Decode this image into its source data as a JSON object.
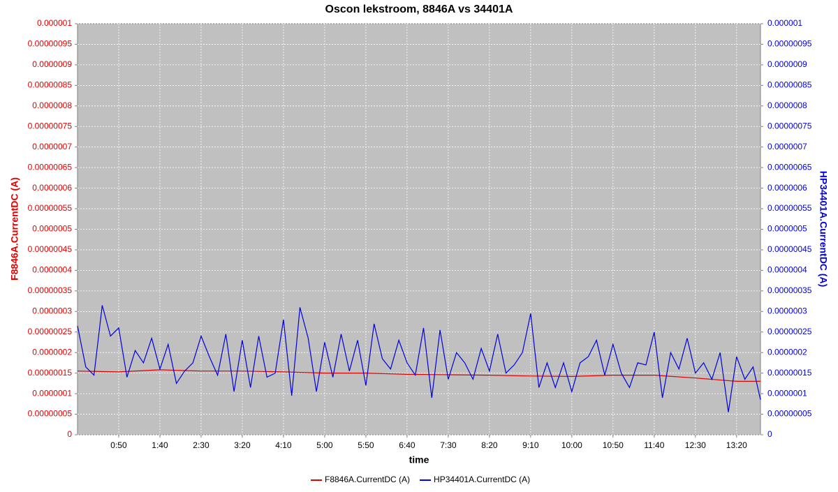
{
  "chart_data": {
    "type": "line",
    "title": "Oscon lekstroom, 8846A vs 34401A",
    "x_label": "time",
    "y_label": "F8846A.CurrentDC (A)",
    "y2_label": "HP34401A.CurrentDC (A)",
    "grid": true,
    "legend": "bottom",
    "xlim": [
      0,
      829
    ],
    "xticks": [
      {
        "value": 50,
        "label": "0:50"
      },
      {
        "value": 100,
        "label": "1:40"
      },
      {
        "value": 150,
        "label": "2:30"
      },
      {
        "value": 200,
        "label": "3:20"
      },
      {
        "value": 250,
        "label": "4:10"
      },
      {
        "value": 300,
        "label": "5:00"
      },
      {
        "value": 350,
        "label": "5:50"
      },
      {
        "value": 400,
        "label": "6:40"
      },
      {
        "value": 450,
        "label": "7:30"
      },
      {
        "value": 500,
        "label": "8:20"
      },
      {
        "value": 550,
        "label": "9:10"
      },
      {
        "value": 600,
        "label": "10:00"
      },
      {
        "value": 650,
        "label": "10:50"
      },
      {
        "value": 700,
        "label": "11:40"
      },
      {
        "value": 750,
        "label": "12:30"
      },
      {
        "value": 800,
        "label": "13:20"
      }
    ],
    "ylim": [
      0,
      1e-06
    ],
    "yticks": [
      0,
      {
        "value": 5e-08,
        "label": "0.00000005"
      },
      {
        "value": 1e-07,
        "label": "0.0000001"
      },
      {
        "value": 1.5e-07,
        "label": "0.00000015"
      },
      {
        "value": 2e-07,
        "label": "0.0000002"
      },
      {
        "value": 2.5e-07,
        "label": "0.00000025"
      },
      {
        "value": 3e-07,
        "label": "0.0000003"
      },
      {
        "value": 3.5e-07,
        "label": "0.00000035"
      },
      {
        "value": 4e-07,
        "label": "0.0000004"
      },
      {
        "value": 4.5e-07,
        "label": "0.00000045"
      },
      {
        "value": 5e-07,
        "label": "0.0000005"
      },
      {
        "value": 5.5e-07,
        "label": "0.00000055"
      },
      {
        "value": 6e-07,
        "label": "0.0000006"
      },
      {
        "value": 6.5e-07,
        "label": "0.00000065"
      },
      {
        "value": 7e-07,
        "label": "0.0000007"
      },
      {
        "value": 7.5e-07,
        "label": "0.00000075"
      },
      {
        "value": 8e-07,
        "label": "0.0000008"
      },
      {
        "value": 8.5e-07,
        "label": "0.00000085"
      },
      {
        "value": 9e-07,
        "label": "0.0000009"
      },
      {
        "value": 9.5e-07,
        "label": "0.00000095"
      },
      1e-06
    ],
    "y2lim": [
      0,
      1e-06
    ],
    "y2ticks": [
      0,
      {
        "value": 5e-08,
        "label": "0.00000005"
      },
      {
        "value": 1e-07,
        "label": "0.0000001"
      },
      {
        "value": 1.5e-07,
        "label": "0.00000015"
      },
      {
        "value": 2e-07,
        "label": "0.0000002"
      },
      {
        "value": 2.5e-07,
        "label": "0.00000025"
      },
      {
        "value": 3e-07,
        "label": "0.0000003"
      },
      {
        "value": 3.5e-07,
        "label": "0.00000035"
      },
      {
        "value": 4e-07,
        "label": "0.0000004"
      },
      {
        "value": 4.5e-07,
        "label": "0.00000045"
      },
      {
        "value": 5e-07,
        "label": "0.0000005"
      },
      {
        "value": 5.5e-07,
        "label": "0.00000055"
      },
      {
        "value": 6e-07,
        "label": "0.0000006"
      },
      {
        "value": 6.5e-07,
        "label": "0.00000065"
      },
      {
        "value": 7e-07,
        "label": "0.0000007"
      },
      {
        "value": 7.5e-07,
        "label": "0.00000075"
      },
      {
        "value": 8e-07,
        "label": "0.0000008"
      },
      {
        "value": 8.5e-07,
        "label": "0.00000085"
      },
      {
        "value": 9e-07,
        "label": "0.0000009"
      },
      {
        "value": 9.5e-07,
        "label": "0.00000095"
      },
      1e-06
    ],
    "series": [
      {
        "name": "F8846A.CurrentDC (A)",
        "color": "#e00000",
        "axis": "y",
        "x": [
          0,
          50,
          100,
          150,
          200,
          250,
          300,
          350,
          400,
          450,
          500,
          550,
          600,
          650,
          700,
          750,
          800,
          829
        ],
        "values": [
          1.55e-07,
          1.53e-07,
          1.58e-07,
          1.55e-07,
          1.55e-07,
          1.53e-07,
          1.5e-07,
          1.5e-07,
          1.47e-07,
          1.46e-07,
          1.45e-07,
          1.43e-07,
          1.42e-07,
          1.45e-07,
          1.45e-07,
          1.38e-07,
          1.3e-07,
          1.3e-07
        ]
      },
      {
        "name": "HP34401A.CurrentDC (A)",
        "color": "#0000e0",
        "axis": "y2",
        "x": [
          0,
          10,
          20,
          30,
          40,
          50,
          60,
          70,
          80,
          90,
          100,
          110,
          120,
          130,
          140,
          150,
          160,
          170,
          180,
          190,
          200,
          210,
          220,
          230,
          240,
          250,
          260,
          270,
          280,
          290,
          300,
          310,
          320,
          330,
          340,
          350,
          360,
          370,
          380,
          390,
          400,
          410,
          420,
          430,
          440,
          450,
          460,
          470,
          480,
          490,
          500,
          510,
          520,
          530,
          540,
          550,
          560,
          570,
          580,
          590,
          600,
          610,
          620,
          630,
          640,
          650,
          660,
          670,
          680,
          690,
          700,
          710,
          720,
          730,
          740,
          750,
          760,
          770,
          780,
          790,
          800,
          810,
          820,
          829
        ],
        "values": [
          2.65e-07,
          1.65e-07,
          1.45e-07,
          3.15e-07,
          2.4e-07,
          2.6e-07,
          1.4e-07,
          2.05e-07,
          1.75e-07,
          2.35e-07,
          1.6e-07,
          2.2e-07,
          1.25e-07,
          1.55e-07,
          1.75e-07,
          2.4e-07,
          1.9e-07,
          1.45e-07,
          2.45e-07,
          1.05e-07,
          2.3e-07,
          1.15e-07,
          2.4e-07,
          1.4e-07,
          1.5e-07,
          2.8e-07,
          9.5e-08,
          3.1e-07,
          2.35e-07,
          1.05e-07,
          2.25e-07,
          1.4e-07,
          2.45e-07,
          1.55e-07,
          2.3e-07,
          1.2e-07,
          2.7e-07,
          1.85e-07,
          1.6e-07,
          2.3e-07,
          1.75e-07,
          1.45e-07,
          2.6e-07,
          9e-08,
          2.55e-07,
          1.35e-07,
          2e-07,
          1.75e-07,
          1.35e-07,
          2.1e-07,
          1.55e-07,
          2.45e-07,
          1.5e-07,
          1.7e-07,
          2e-07,
          2.95e-07,
          1.15e-07,
          1.75e-07,
          1.15e-07,
          1.75e-07,
          1.05e-07,
          1.75e-07,
          1.9e-07,
          2.3e-07,
          1.45e-07,
          2.2e-07,
          1.5e-07,
          1.15e-07,
          1.75e-07,
          1.7e-07,
          2.5e-07,
          9e-08,
          2e-07,
          1.6e-07,
          2.35e-07,
          1.5e-07,
          1.75e-07,
          1.35e-07,
          2e-07,
          5.5e-08,
          1.9e-07,
          1.35e-07,
          1.65e-07,
          8.5e-08
        ]
      }
    ]
  }
}
